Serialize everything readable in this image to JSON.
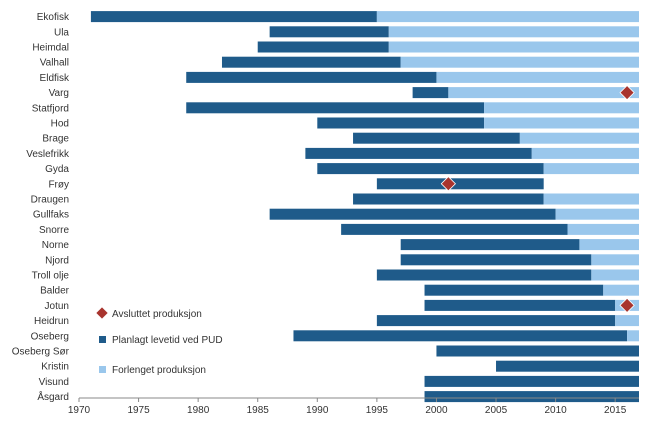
{
  "chart_data": {
    "type": "bar",
    "orientation": "horizontal-range",
    "title": "",
    "xlabel": "",
    "ylabel": "",
    "xlim": [
      1970,
      2017
    ],
    "x_ticks": [
      1970,
      1975,
      1980,
      1985,
      1990,
      1995,
      2000,
      2005,
      2010,
      2015
    ],
    "grid": false,
    "legend": {
      "position": "bottom-left",
      "items": [
        {
          "key": "ended",
          "label": "Avsluttet produksjon",
          "marker": "diamond",
          "color": "#a8342e"
        },
        {
          "key": "planned",
          "label": "Planlagt levetid ved PUD",
          "marker": "square",
          "color": "#1f5b8a"
        },
        {
          "key": "extended",
          "label": "Forlenget produksjon",
          "marker": "square",
          "color": "#9ac7ec"
        }
      ]
    },
    "colors": {
      "planned": "#1f5b8a",
      "extended": "#9ac7ec",
      "ended": "#a8342e"
    },
    "fields": [
      {
        "name": "Ekofisk",
        "start": 1971,
        "pud_end": 1995,
        "extended_end": 2017,
        "ended": null
      },
      {
        "name": "Ula",
        "start": 1986,
        "pud_end": 1996,
        "extended_end": 2017,
        "ended": null
      },
      {
        "name": "Heimdal",
        "start": 1985,
        "pud_end": 1996,
        "extended_end": 2017,
        "ended": null
      },
      {
        "name": "Valhall",
        "start": 1982,
        "pud_end": 1997,
        "extended_end": 2017,
        "ended": null
      },
      {
        "name": "Eldfisk",
        "start": 1979,
        "pud_end": 2000,
        "extended_end": 2017,
        "ended": null
      },
      {
        "name": "Varg",
        "start": 1998,
        "pud_end": 2001,
        "extended_end": 2017,
        "ended": 2016
      },
      {
        "name": "Statfjord",
        "start": 1979,
        "pud_end": 2004,
        "extended_end": 2017,
        "ended": null
      },
      {
        "name": "Hod",
        "start": 1990,
        "pud_end": 2004,
        "extended_end": 2017,
        "ended": null
      },
      {
        "name": "Brage",
        "start": 1993,
        "pud_end": 2007,
        "extended_end": 2017,
        "ended": null
      },
      {
        "name": "Veslefrikk",
        "start": 1989,
        "pud_end": 2008,
        "extended_end": 2017,
        "ended": null
      },
      {
        "name": "Gyda",
        "start": 1990,
        "pud_end": 2009,
        "extended_end": 2017,
        "ended": null
      },
      {
        "name": "Frøy",
        "start": 1995,
        "pud_end": 2009,
        "extended_end": null,
        "ended": 2001
      },
      {
        "name": "Draugen",
        "start": 1993,
        "pud_end": 2009,
        "extended_end": 2017,
        "ended": null
      },
      {
        "name": "Gullfaks",
        "start": 1986,
        "pud_end": 2010,
        "extended_end": 2017,
        "ended": null
      },
      {
        "name": "Snorre",
        "start": 1992,
        "pud_end": 2011,
        "extended_end": 2017,
        "ended": null
      },
      {
        "name": "Norne",
        "start": 1997,
        "pud_end": 2012,
        "extended_end": 2017,
        "ended": null
      },
      {
        "name": "Njord",
        "start": 1997,
        "pud_end": 2013,
        "extended_end": 2017,
        "ended": null
      },
      {
        "name": "Troll olje",
        "start": 1995,
        "pud_end": 2013,
        "extended_end": 2017,
        "ended": null
      },
      {
        "name": "Balder",
        "start": 1999,
        "pud_end": 2014,
        "extended_end": 2017,
        "ended": null
      },
      {
        "name": "Jotun",
        "start": 1999,
        "pud_end": 2015,
        "extended_end": 2017,
        "ended": 2016
      },
      {
        "name": "Heidrun",
        "start": 1995,
        "pud_end": 2015,
        "extended_end": 2017,
        "ended": null
      },
      {
        "name": "Oseberg",
        "start": 1988,
        "pud_end": 2016,
        "extended_end": 2017,
        "ended": null
      },
      {
        "name": "Oseberg Sør",
        "start": 2000,
        "pud_end": 2017,
        "extended_end": null,
        "ended": null
      },
      {
        "name": "Kristin",
        "start": 2005,
        "pud_end": 2017,
        "extended_end": null,
        "ended": null
      },
      {
        "name": "Visund",
        "start": 1999,
        "pud_end": 2017,
        "extended_end": null,
        "ended": null
      },
      {
        "name": "Åsgard",
        "start": 1999,
        "pud_end": 2017,
        "extended_end": null,
        "ended": null
      }
    ]
  }
}
